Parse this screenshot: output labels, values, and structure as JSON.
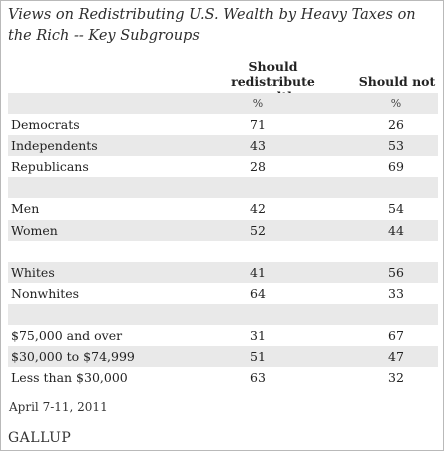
{
  "title": "Views on Redistributing U.S. Wealth by Heavy Taxes on the Rich -- Key Subgroups",
  "columns": [
    "Should redistribute wealth",
    "Should not"
  ],
  "units": [
    "%",
    "%"
  ],
  "rows": [
    {
      "label": "Democrats",
      "v1": "71",
      "v2": "26"
    },
    {
      "label": "Independents",
      "v1": "43",
      "v2": "53"
    },
    {
      "label": "Republicans",
      "v1": "28",
      "v2": "69"
    },
    {
      "label": "",
      "v1": "",
      "v2": ""
    },
    {
      "label": "Men",
      "v1": "42",
      "v2": "54"
    },
    {
      "label": "Women",
      "v1": "52",
      "v2": "44"
    },
    {
      "label": "",
      "v1": "",
      "v2": ""
    },
    {
      "label": "Whites",
      "v1": "41",
      "v2": "56"
    },
    {
      "label": "Nonwhites",
      "v1": "64",
      "v2": "33"
    },
    {
      "label": "",
      "v1": "",
      "v2": ""
    },
    {
      "label": "$75,000 and over",
      "v1": "31",
      "v2": "67"
    },
    {
      "label": "$30,000 to $74,999",
      "v1": "51",
      "v2": "47"
    },
    {
      "label": "Less than $30,000",
      "v1": "63",
      "v2": "32"
    }
  ],
  "footer": {
    "date": "April 7-11, 2011",
    "source": "GALLUP"
  },
  "chart_data": {
    "type": "table",
    "title": "Views on Redistributing U.S. Wealth by Heavy Taxes on the Rich -- Key Subgroups",
    "categories": [
      "Democrats",
      "Independents",
      "Republicans",
      "Men",
      "Women",
      "Whites",
      "Nonwhites",
      "$75,000 and over",
      "$30,000 to $74,999",
      "Less than $30,000"
    ],
    "series": [
      {
        "name": "Should redistribute wealth",
        "values": [
          71,
          43,
          28,
          42,
          52,
          41,
          64,
          31,
          51,
          63
        ]
      },
      {
        "name": "Should not",
        "values": [
          26,
          53,
          69,
          54,
          44,
          56,
          33,
          67,
          47,
          32
        ]
      }
    ]
  }
}
